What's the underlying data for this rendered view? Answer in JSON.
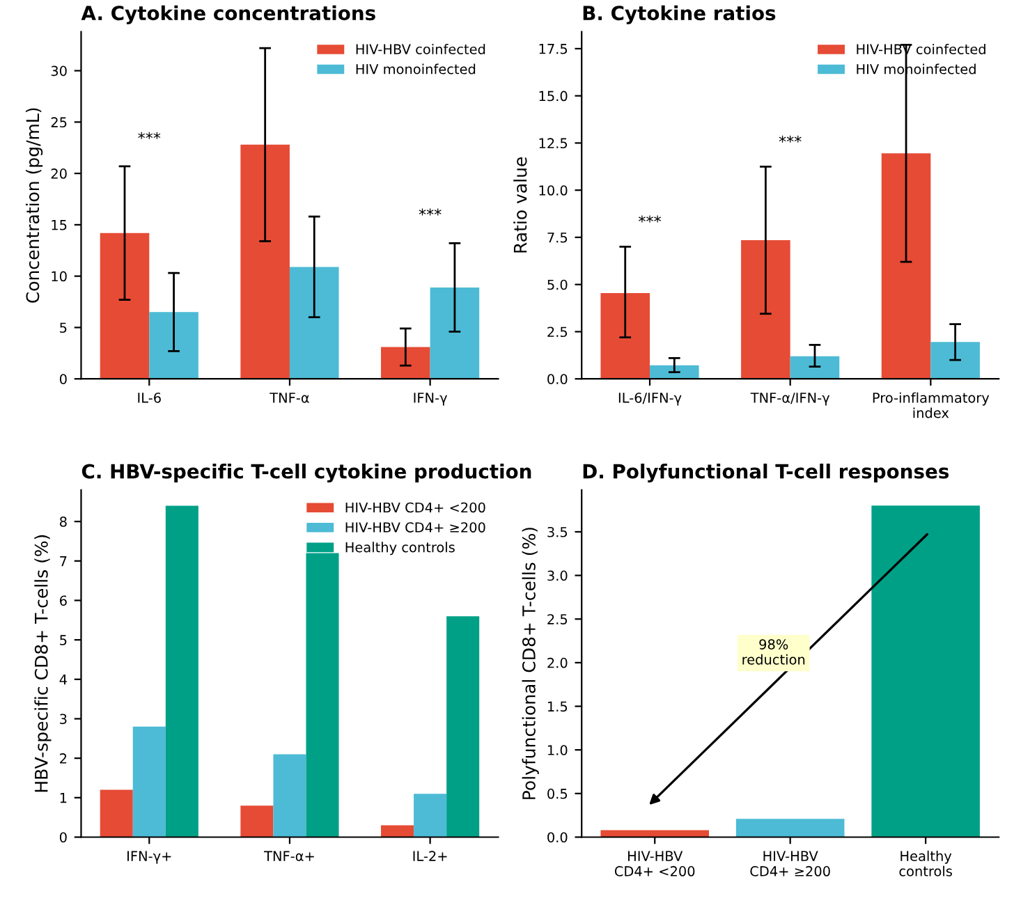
{
  "chart_data": [
    {
      "type": "bar",
      "title": "A. Cytokine concentrations",
      "ylabel": "Concentration (pg/mL)",
      "categories": [
        "IL-6",
        "TNF-α",
        "IFN-γ"
      ],
      "series": [
        {
          "name": "HIV-HBV coinfected",
          "color": "#e64b35",
          "values": [
            14.2,
            22.8,
            3.1
          ],
          "errors": [
            [
              7.7,
              20.7
            ],
            [
              13.4,
              32.2
            ],
            [
              1.3,
              4.9
            ]
          ]
        },
        {
          "name": "HIV monoinfected",
          "color": "#4dbbd5",
          "values": [
            6.5,
            10.9,
            8.9
          ],
          "errors": [
            [
              2.7,
              10.3
            ],
            [
              6.0,
              15.8
            ],
            [
              4.6,
              13.2
            ]
          ]
        }
      ],
      "ylim": [
        0,
        33.8
      ],
      "yticks": [
        0,
        5,
        10,
        15,
        20,
        25,
        30
      ],
      "legend": "top right",
      "grid": false,
      "annotations": [
        "***",
        "***"
      ]
    },
    {
      "type": "bar",
      "title": "B. Cytokine ratios",
      "ylabel": "Ratio value",
      "categories": [
        "IL-6/IFN-γ",
        "TNF-α/IFN-γ",
        "Pro-inflammatory\nindex"
      ],
      "series": [
        {
          "name": "HIV-HBV coinfected",
          "color": "#e64b35",
          "values": [
            4.55,
            7.35,
            11.95
          ],
          "errors": [
            [
              2.2,
              7.0
            ],
            [
              3.45,
              11.25
            ],
            [
              6.2,
              17.7
            ]
          ]
        },
        {
          "name": "HIV monoinfected",
          "color": "#4dbbd5",
          "values": [
            0.72,
            1.2,
            1.95
          ],
          "errors": [
            [
              0.35,
              1.1
            ],
            [
              0.65,
              1.8
            ],
            [
              1.0,
              2.9
            ]
          ]
        }
      ],
      "ylim": [
        0,
        18.4
      ],
      "yticks": [
        {
          "value": 0,
          "label": "0.0"
        },
        {
          "value": 2.5,
          "label": "2.5"
        },
        {
          "value": 5,
          "label": "5.0"
        },
        {
          "value": 7.5,
          "label": "7.5"
        },
        {
          "value": 10,
          "label": "10.0"
        },
        {
          "value": 12.5,
          "label": "12.5"
        },
        {
          "value": 15,
          "label": "15.0"
        },
        {
          "value": 17.5,
          "label": "17.5"
        }
      ],
      "legend": "top right",
      "grid": false,
      "annotations": [
        "***",
        "***"
      ]
    },
    {
      "type": "bar",
      "title": "C. HBV-specific T-cell cytokine production",
      "ylabel": "HBV-specific CD8+ T-cells (%)",
      "categories": [
        "IFN-γ+",
        "TNF-α+",
        "IL-2+"
      ],
      "series": [
        {
          "name": "HIV-HBV CD4+ <200",
          "color": "#e64b35",
          "values": [
            1.2,
            0.8,
            0.3
          ]
        },
        {
          "name": "HIV-HBV CD4+ ≥200",
          "color": "#4dbbd5",
          "values": [
            2.8,
            2.1,
            1.1
          ]
        },
        {
          "name": "Healthy controls",
          "color": "#00a087",
          "values": [
            8.4,
            7.2,
            5.6
          ]
        }
      ],
      "ylim": [
        0,
        8.8
      ],
      "yticks": [
        0,
        1,
        2,
        3,
        4,
        5,
        6,
        7,
        8
      ],
      "legend": "top right",
      "grid": false
    },
    {
      "type": "bar",
      "title": "D. Polyfunctional T-cell responses",
      "ylabel": "Polyfunctional CD8+ T-cells (%)",
      "categories": [
        "HIV-HBV\nCD4+ <200",
        "HIV-HBV\nCD4+ ≥200",
        "Healthy\ncontrols"
      ],
      "values": [
        0.08,
        0.21,
        3.8
      ],
      "colors": [
        "#e64b35",
        "#4dbbd5",
        "#00a087"
      ],
      "ylim": [
        0,
        3.98
      ],
      "yticks": [
        {
          "value": 0,
          "label": "0.0"
        },
        {
          "value": 0.5,
          "label": "0.5"
        },
        {
          "value": 1,
          "label": "1.0"
        },
        {
          "value": 1.5,
          "label": "1.5"
        },
        {
          "value": 2,
          "label": "2.0"
        },
        {
          "value": 2.5,
          "label": "2.5"
        },
        {
          "value": 3,
          "label": "3.0"
        },
        {
          "value": 3.5,
          "label": "3.5"
        }
      ],
      "grid": false,
      "annotations": [
        "98%\nreduction"
      ]
    }
  ]
}
